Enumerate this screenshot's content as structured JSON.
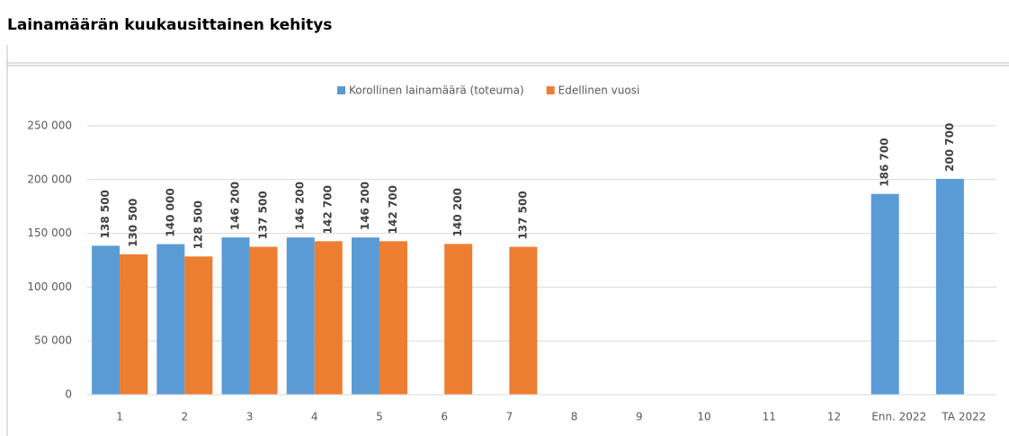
{
  "chart_data": {
    "type": "bar",
    "title": "Lainamäärän kuukausittainen kehitys",
    "categories": [
      "1",
      "2",
      "3",
      "4",
      "5",
      "6",
      "7",
      "8",
      "9",
      "10",
      "11",
      "12",
      "Enn. 2022",
      "TA 2022"
    ],
    "series": [
      {
        "name": "Korollinen lainamäärä (toteuma)",
        "color": "#5b9bd5",
        "values": [
          138500,
          140000,
          146200,
          146200,
          146200,
          null,
          null,
          null,
          null,
          null,
          null,
          null,
          186700,
          200700
        ],
        "value_labels": [
          "138 500",
          "140 000",
          "146 200",
          "146 200",
          "146 200",
          null,
          null,
          null,
          null,
          null,
          null,
          null,
          "186 700",
          "200 700"
        ]
      },
      {
        "name": "Edellinen vuosi",
        "color": "#ed7d31",
        "values": [
          130500,
          128500,
          137500,
          142700,
          142700,
          140200,
          137500,
          null,
          null,
          null,
          null,
          null,
          null,
          null
        ],
        "value_labels": [
          "130 500",
          "128 500",
          "137 500",
          "142 700",
          "142 700",
          "140 200",
          "137 500",
          null,
          null,
          null,
          null,
          null,
          null,
          null
        ]
      }
    ],
    "ylim": [
      0,
      250000
    ],
    "yticks": [
      0,
      {
        "value": 50000,
        "label": "50 000"
      },
      {
        "value": 100000,
        "label": "100 000"
      },
      {
        "value": 150000,
        "label": "150 000"
      },
      {
        "value": 200000,
        "label": "200 000"
      },
      {
        "value": 250000,
        "label": "250 000"
      }
    ],
    "grid": true,
    "legend": "top"
  }
}
